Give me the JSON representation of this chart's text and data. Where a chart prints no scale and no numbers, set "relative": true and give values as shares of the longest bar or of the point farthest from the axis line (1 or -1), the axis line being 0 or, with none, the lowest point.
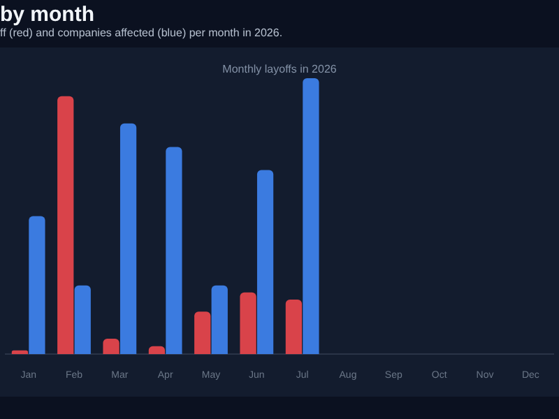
{
  "chart_data": {
    "type": "bar",
    "title": "by month",
    "subtitle": "ff (red) and companies affected (blue) per month in 2026.",
    "annotations": [
      "Monthly layoffs in 2026"
    ],
    "relative": true,
    "categories": [
      "Jan",
      "Feb",
      "Mar",
      "Apr",
      "May",
      "Jun",
      "Jul",
      "Aug",
      "Sep",
      "Oct",
      "Nov",
      "Dec"
    ],
    "series": [
      {
        "color": "#d9434a",
        "values": [
          0.014,
          0.935,
          0.056,
          0.029,
          0.154,
          0.224,
          0.198,
          null,
          null,
          null,
          null,
          null
        ]
      },
      {
        "color": "#3b7be0",
        "values": [
          0.5,
          0.249,
          0.836,
          0.751,
          0.249,
          0.667,
          1,
          null,
          null,
          null,
          null,
          null
        ]
      }
    ]
  }
}
